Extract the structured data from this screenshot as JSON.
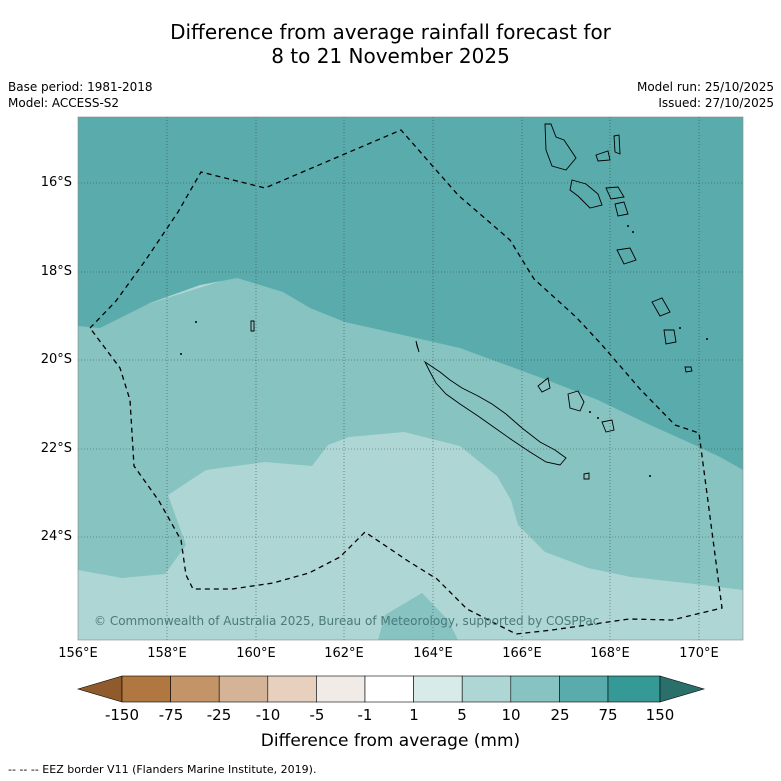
{
  "title": {
    "line1": "Difference from average rainfall forecast for",
    "line2": "8 to 21 November 2025"
  },
  "meta": {
    "base_period": "Base period: 1981-2018",
    "model": "Model: ACCESS-S2",
    "model_run": "Model run: 25/10/2025",
    "issued": "Issued: 27/10/2025"
  },
  "map": {
    "lat_labels": [
      "16°S",
      "18°S",
      "20°S",
      "22°S",
      "24°S"
    ],
    "lon_labels": [
      "156°E",
      "158°E",
      "160°E",
      "162°E",
      "164°E",
      "166°E",
      "168°E",
      "170°E"
    ],
    "copyright": "© Commonwealth of Australia 2025, Bureau of Meteorology, supported by COSPPac",
    "regions": [
      {
        "category": "25 to 75",
        "color": "#5aabab"
      },
      {
        "category": "10 to 25",
        "color": "#86c3c1"
      },
      {
        "category": "5 to 10",
        "color": "#aed6d5"
      }
    ]
  },
  "colorbar": {
    "labels": [
      "-150",
      "-75",
      "-25",
      "-10",
      "-5",
      "-1",
      "1",
      "5",
      "10",
      "25",
      "75",
      "150"
    ],
    "colors": [
      "#8f5b2d",
      "#b07840",
      "#c39468",
      "#d5b396",
      "#e7d1be",
      "#f0ebe7",
      "#ffffff",
      "#d8ebe9",
      "#aed6d5",
      "#86c3c1",
      "#5aabab",
      "#359995",
      "#2b6f6b"
    ],
    "title": "Difference from average (mm)"
  },
  "footer": "--  --  -- EEZ border V11 (Flanders Marine Institute, 2019)."
}
